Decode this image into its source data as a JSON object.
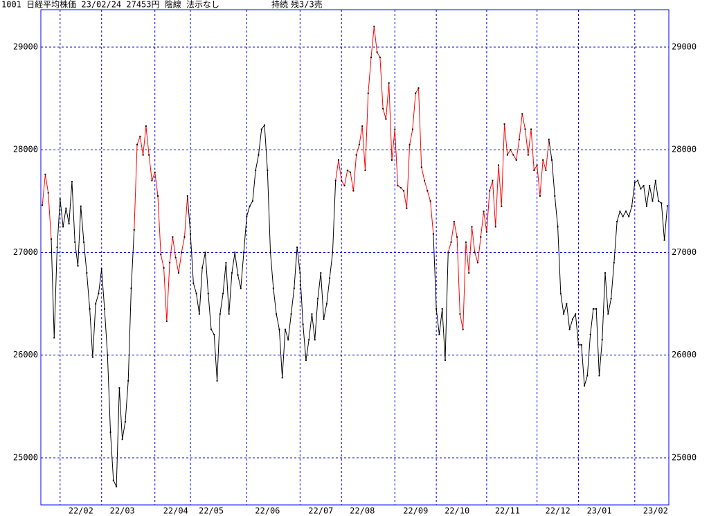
{
  "chart_data": {
    "type": "line",
    "title": "1001 日経平均株価 23/02/24 27453円 陰線 法示なし",
    "annotations": [
      "持続",
      "残3/3売"
    ],
    "categories": [
      null,
      null,
      null,
      null,
      null,
      null,
      "22/02",
      null,
      null,
      null,
      null,
      null,
      null,
      null,
      null,
      null,
      null,
      null,
      null,
      null,
      "22/03",
      null,
      null,
      null,
      null,
      null,
      null,
      null,
      null,
      null,
      null,
      null,
      null,
      null,
      null,
      null,
      null,
      null,
      "22/04",
      null,
      null,
      null,
      null,
      null,
      null,
      null,
      null,
      null,
      null,
      null,
      "22/05",
      null,
      null,
      null,
      null,
      null,
      null,
      null,
      null,
      null,
      null,
      null,
      null,
      null,
      null,
      null,
      null,
      null,
      null,
      "22/06",
      null,
      null,
      null,
      null,
      null,
      null,
      null,
      null,
      null,
      null,
      null,
      null,
      null,
      null,
      null,
      null,
      null,
      "22/07",
      null,
      null,
      null,
      null,
      null,
      null,
      null,
      null,
      null,
      null,
      null,
      null,
      null,
      "22/08",
      null,
      null,
      null,
      null,
      null,
      null,
      null,
      null,
      null,
      null,
      null,
      null,
      null,
      null,
      null,
      null,
      null,
      "22/09",
      null,
      null,
      null,
      null,
      null,
      null,
      null,
      null,
      null,
      null,
      null,
      null,
      null,
      "22/10",
      null,
      null,
      null,
      null,
      null,
      null,
      null,
      null,
      null,
      null,
      null,
      null,
      null,
      null,
      null,
      null,
      "22/11",
      null,
      null,
      null,
      null,
      null,
      null,
      null,
      null,
      null,
      null,
      null,
      null,
      null,
      null,
      null,
      null,
      "22/12",
      null,
      null,
      null,
      null,
      null,
      null,
      null,
      null,
      null,
      null,
      null,
      null,
      null,
      "23/01",
      null,
      null,
      null,
      null,
      null,
      null,
      null,
      null,
      null,
      null,
      null,
      null,
      null,
      null,
      null,
      null,
      null,
      null,
      "23/02",
      null,
      null,
      null,
      null,
      null,
      null,
      null,
      null,
      null,
      null,
      null
    ],
    "values": [
      27460,
      27760,
      27580,
      27130,
      26170,
      27050,
      27520,
      27250,
      27430,
      27280,
      27690,
      27100,
      26870,
      27450,
      27100,
      26800,
      26450,
      25980,
      26500,
      26600,
      26840,
      26450,
      26000,
      25250,
      24780,
      24720,
      25680,
      25180,
      25350,
      25750,
      26650,
      27220,
      28050,
      28130,
      27950,
      28230,
      27950,
      27700,
      27780,
      27550,
      26980,
      26850,
      26330,
      26900,
      27150,
      26950,
      26800,
      27000,
      27150,
      27550,
      27180,
      26700,
      26600,
      26400,
      26850,
      27000,
      26600,
      26250,
      26200,
      25750,
      26400,
      26600,
      26900,
      26400,
      26800,
      27000,
      26780,
      26650,
      27000,
      27350,
      27450,
      27500,
      27800,
      27950,
      28200,
      28240,
      27800,
      27000,
      26650,
      26400,
      26250,
      25780,
      26250,
      26150,
      26400,
      26650,
      27050,
      26800,
      26300,
      25950,
      26150,
      26400,
      26150,
      26550,
      26800,
      26350,
      26500,
      26750,
      27000,
      27700,
      27900,
      27700,
      27650,
      27800,
      27780,
      27600,
      27950,
      28050,
      28230,
      27800,
      28550,
      28900,
      29200,
      28950,
      28900,
      28400,
      28300,
      28650,
      27900,
      28200,
      27650,
      27630,
      27600,
      27430,
      28050,
      28200,
      28550,
      28600,
      27830,
      27700,
      27600,
      27500,
      27180,
      26450,
      26200,
      26450,
      25950,
      27000,
      27100,
      27300,
      27150,
      26400,
      26250,
      27100,
      26800,
      27250,
      27000,
      26900,
      27150,
      27400,
      27200,
      27600,
      27700,
      27250,
      27850,
      27450,
      28250,
      27950,
      28000,
      27950,
      27900,
      28100,
      28350,
      28200,
      27950,
      28200,
      27800,
      27850,
      27550,
      27900,
      27800,
      28100,
      27900,
      27550,
      27250,
      26600,
      26400,
      26500,
      26250,
      26350,
      26400,
      26100,
      26100,
      25700,
      25800,
      26200,
      26450,
      26450,
      25800,
      26150,
      26800,
      26400,
      26550,
      26900,
      27300,
      27400,
      27350,
      27400,
      27350,
      27450,
      27680,
      27700,
      27620,
      27650,
      27450,
      27650,
      27500,
      27700,
      27500,
      27480,
      27120,
      27453
    ],
    "segment_colors": [
      "red",
      "red",
      "red",
      "black",
      "black",
      "black",
      "black",
      "black",
      "black",
      "black",
      "black",
      "black",
      "black",
      "black",
      "black",
      "black",
      "black",
      "black",
      "black",
      "black",
      "black",
      "black",
      "black",
      "black",
      "black",
      "black",
      "black",
      "black",
      "black",
      "black",
      "black",
      "red",
      "red",
      "red",
      "red",
      "red",
      "red",
      "red",
      "red",
      "red",
      "red",
      "red",
      "red",
      "red",
      "red",
      "red",
      "red",
      "red",
      "red",
      "black",
      "black",
      "black",
      "black",
      "black",
      "black",
      "black",
      "black",
      "black",
      "black",
      "black",
      "black",
      "black",
      "black",
      "black",
      "black",
      "black",
      "black",
      "black",
      "black",
      "black",
      "black",
      "black",
      "black",
      "black",
      "black",
      "black",
      "black",
      "black",
      "black",
      "black",
      "black",
      "black",
      "black",
      "black",
      "black",
      "black",
      "black",
      "black",
      "black",
      "black",
      "black",
      "black",
      "black",
      "black",
      "black",
      "black",
      "black",
      "black",
      "black",
      "red",
      "red",
      "red",
      "red",
      "red",
      "red",
      "red",
      "red",
      "red",
      "red",
      "red",
      "red",
      "red",
      "red",
      "red",
      "red",
      "red",
      "red",
      "red",
      "red",
      "red",
      "red",
      "red",
      "red",
      "red",
      "red",
      "red",
      "red",
      "red",
      "red",
      "red",
      "red",
      "red",
      "black",
      "black",
      "black",
      "black",
      "black",
      "red",
      "red",
      "red",
      "red",
      "red",
      "red",
      "red",
      "red",
      "red",
      "red",
      "red",
      "red",
      "red",
      "red",
      "red",
      "red",
      "red",
      "red",
      "red",
      "red",
      "red",
      "red",
      "red",
      "red",
      "red",
      "red",
      "red",
      "red",
      "red",
      "red",
      "red",
      "red",
      "red",
      "red",
      "black",
      "black",
      "black",
      "black",
      "black",
      "black",
      "black",
      "black",
      "black",
      "black",
      "black",
      "black",
      "black",
      "black",
      "black",
      "black",
      "black",
      "black",
      "black",
      "black",
      "black",
      "black",
      "black",
      "black",
      "black",
      "black",
      "black",
      "black",
      "black",
      "black",
      "black",
      "black",
      "black",
      "black",
      "black",
      "black",
      "black",
      "black",
      "black",
      "black",
      "black"
    ],
    "marker_color": "#000000",
    "frame_color": "#0000ff",
    "grid_color": "#0000ff",
    "grid": true,
    "ylim": [
      24541,
      29364
    ],
    "yticks": [
      25000,
      26000,
      27000,
      28000,
      29000
    ]
  }
}
